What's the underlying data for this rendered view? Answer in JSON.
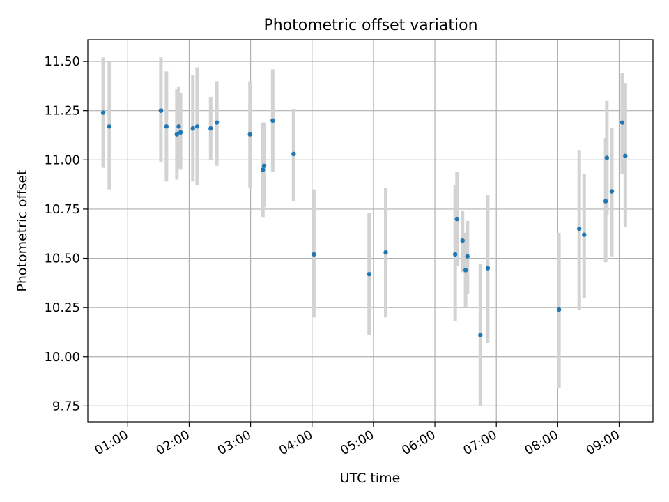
{
  "chart_data": {
    "type": "scatter",
    "title": "Photometric offset variation",
    "xlabel": "UTC time",
    "ylabel": "Photometric offset",
    "x_unit": "hours UTC",
    "xlim": [
      0.35,
      9.55
    ],
    "ylim": [
      9.67,
      11.61
    ],
    "grid": true,
    "legend": "none",
    "xticks": [
      {
        "value": 1,
        "label": "01:00"
      },
      {
        "value": 2,
        "label": "02:00"
      },
      {
        "value": 3,
        "label": "03:00"
      },
      {
        "value": 4,
        "label": "04:00"
      },
      {
        "value": 5,
        "label": "05:00"
      },
      {
        "value": 6,
        "label": "06:00"
      },
      {
        "value": 7,
        "label": "07:00"
      },
      {
        "value": 8,
        "label": "08:00"
      },
      {
        "value": 9,
        "label": "09:00"
      }
    ],
    "yticks": [
      {
        "value": 9.75,
        "label": "9.75"
      },
      {
        "value": 10.0,
        "label": "10.00"
      },
      {
        "value": 10.25,
        "label": "10.25"
      },
      {
        "value": 10.5,
        "label": "10.50"
      },
      {
        "value": 10.75,
        "label": "10.75"
      },
      {
        "value": 11.0,
        "label": "11.00"
      },
      {
        "value": 11.25,
        "label": "11.25"
      },
      {
        "value": 11.5,
        "label": "11.50"
      }
    ],
    "series": [
      {
        "name": "Photometric offset",
        "marker_color": "#1f77b4",
        "errorbar_color": "#d3d3d3",
        "points": [
          {
            "x": 0.6,
            "y": 11.24,
            "lo": 10.96,
            "hi": 11.52
          },
          {
            "x": 0.7,
            "y": 11.17,
            "lo": 10.85,
            "hi": 11.5
          },
          {
            "x": 1.54,
            "y": 11.25,
            "lo": 10.99,
            "hi": 11.52
          },
          {
            "x": 1.63,
            "y": 11.17,
            "lo": 10.89,
            "hi": 11.45
          },
          {
            "x": 1.8,
            "y": 11.13,
            "lo": 10.9,
            "hi": 11.36
          },
          {
            "x": 1.83,
            "y": 11.17,
            "lo": 10.96,
            "hi": 11.37
          },
          {
            "x": 1.86,
            "y": 11.14,
            "lo": 10.95,
            "hi": 11.34
          },
          {
            "x": 2.06,
            "y": 11.16,
            "lo": 10.89,
            "hi": 11.43
          },
          {
            "x": 2.13,
            "y": 11.17,
            "lo": 10.87,
            "hi": 11.47
          },
          {
            "x": 2.35,
            "y": 11.16,
            "lo": 11.0,
            "hi": 11.32
          },
          {
            "x": 2.45,
            "y": 11.19,
            "lo": 10.97,
            "hi": 11.4
          },
          {
            "x": 2.99,
            "y": 11.13,
            "lo": 10.86,
            "hi": 11.4
          },
          {
            "x": 3.2,
            "y": 10.95,
            "lo": 10.71,
            "hi": 11.19
          },
          {
            "x": 3.22,
            "y": 10.97,
            "lo": 10.76,
            "hi": 11.19
          },
          {
            "x": 3.36,
            "y": 11.2,
            "lo": 10.94,
            "hi": 11.46
          },
          {
            "x": 3.7,
            "y": 11.03,
            "lo": 10.79,
            "hi": 11.26
          },
          {
            "x": 4.03,
            "y": 10.52,
            "lo": 10.2,
            "hi": 10.85
          },
          {
            "x": 4.93,
            "y": 10.42,
            "lo": 10.11,
            "hi": 10.73
          },
          {
            "x": 5.2,
            "y": 10.53,
            "lo": 10.2,
            "hi": 10.86
          },
          {
            "x": 6.33,
            "y": 10.52,
            "lo": 10.18,
            "hi": 10.87
          },
          {
            "x": 6.36,
            "y": 10.7,
            "lo": 10.46,
            "hi": 10.94
          },
          {
            "x": 6.45,
            "y": 10.59,
            "lo": 10.43,
            "hi": 10.74
          },
          {
            "x": 6.5,
            "y": 10.44,
            "lo": 10.25,
            "hi": 10.63
          },
          {
            "x": 6.53,
            "y": 10.51,
            "lo": 10.32,
            "hi": 10.69
          },
          {
            "x": 6.74,
            "y": 10.11,
            "lo": 9.75,
            "hi": 10.47
          },
          {
            "x": 6.86,
            "y": 10.45,
            "lo": 10.07,
            "hi": 10.82
          },
          {
            "x": 8.02,
            "y": 10.24,
            "lo": 9.84,
            "hi": 10.63
          },
          {
            "x": 8.35,
            "y": 10.65,
            "lo": 10.24,
            "hi": 11.05
          },
          {
            "x": 8.43,
            "y": 10.62,
            "lo": 10.3,
            "hi": 10.93
          },
          {
            "x": 8.78,
            "y": 10.79,
            "lo": 10.48,
            "hi": 11.11
          },
          {
            "x": 8.8,
            "y": 11.01,
            "lo": 10.72,
            "hi": 11.3
          },
          {
            "x": 8.88,
            "y": 10.84,
            "lo": 10.51,
            "hi": 11.16
          },
          {
            "x": 9.05,
            "y": 11.19,
            "lo": 10.93,
            "hi": 11.44
          },
          {
            "x": 9.1,
            "y": 11.02,
            "lo": 10.66,
            "hi": 11.39
          }
        ]
      }
    ]
  }
}
